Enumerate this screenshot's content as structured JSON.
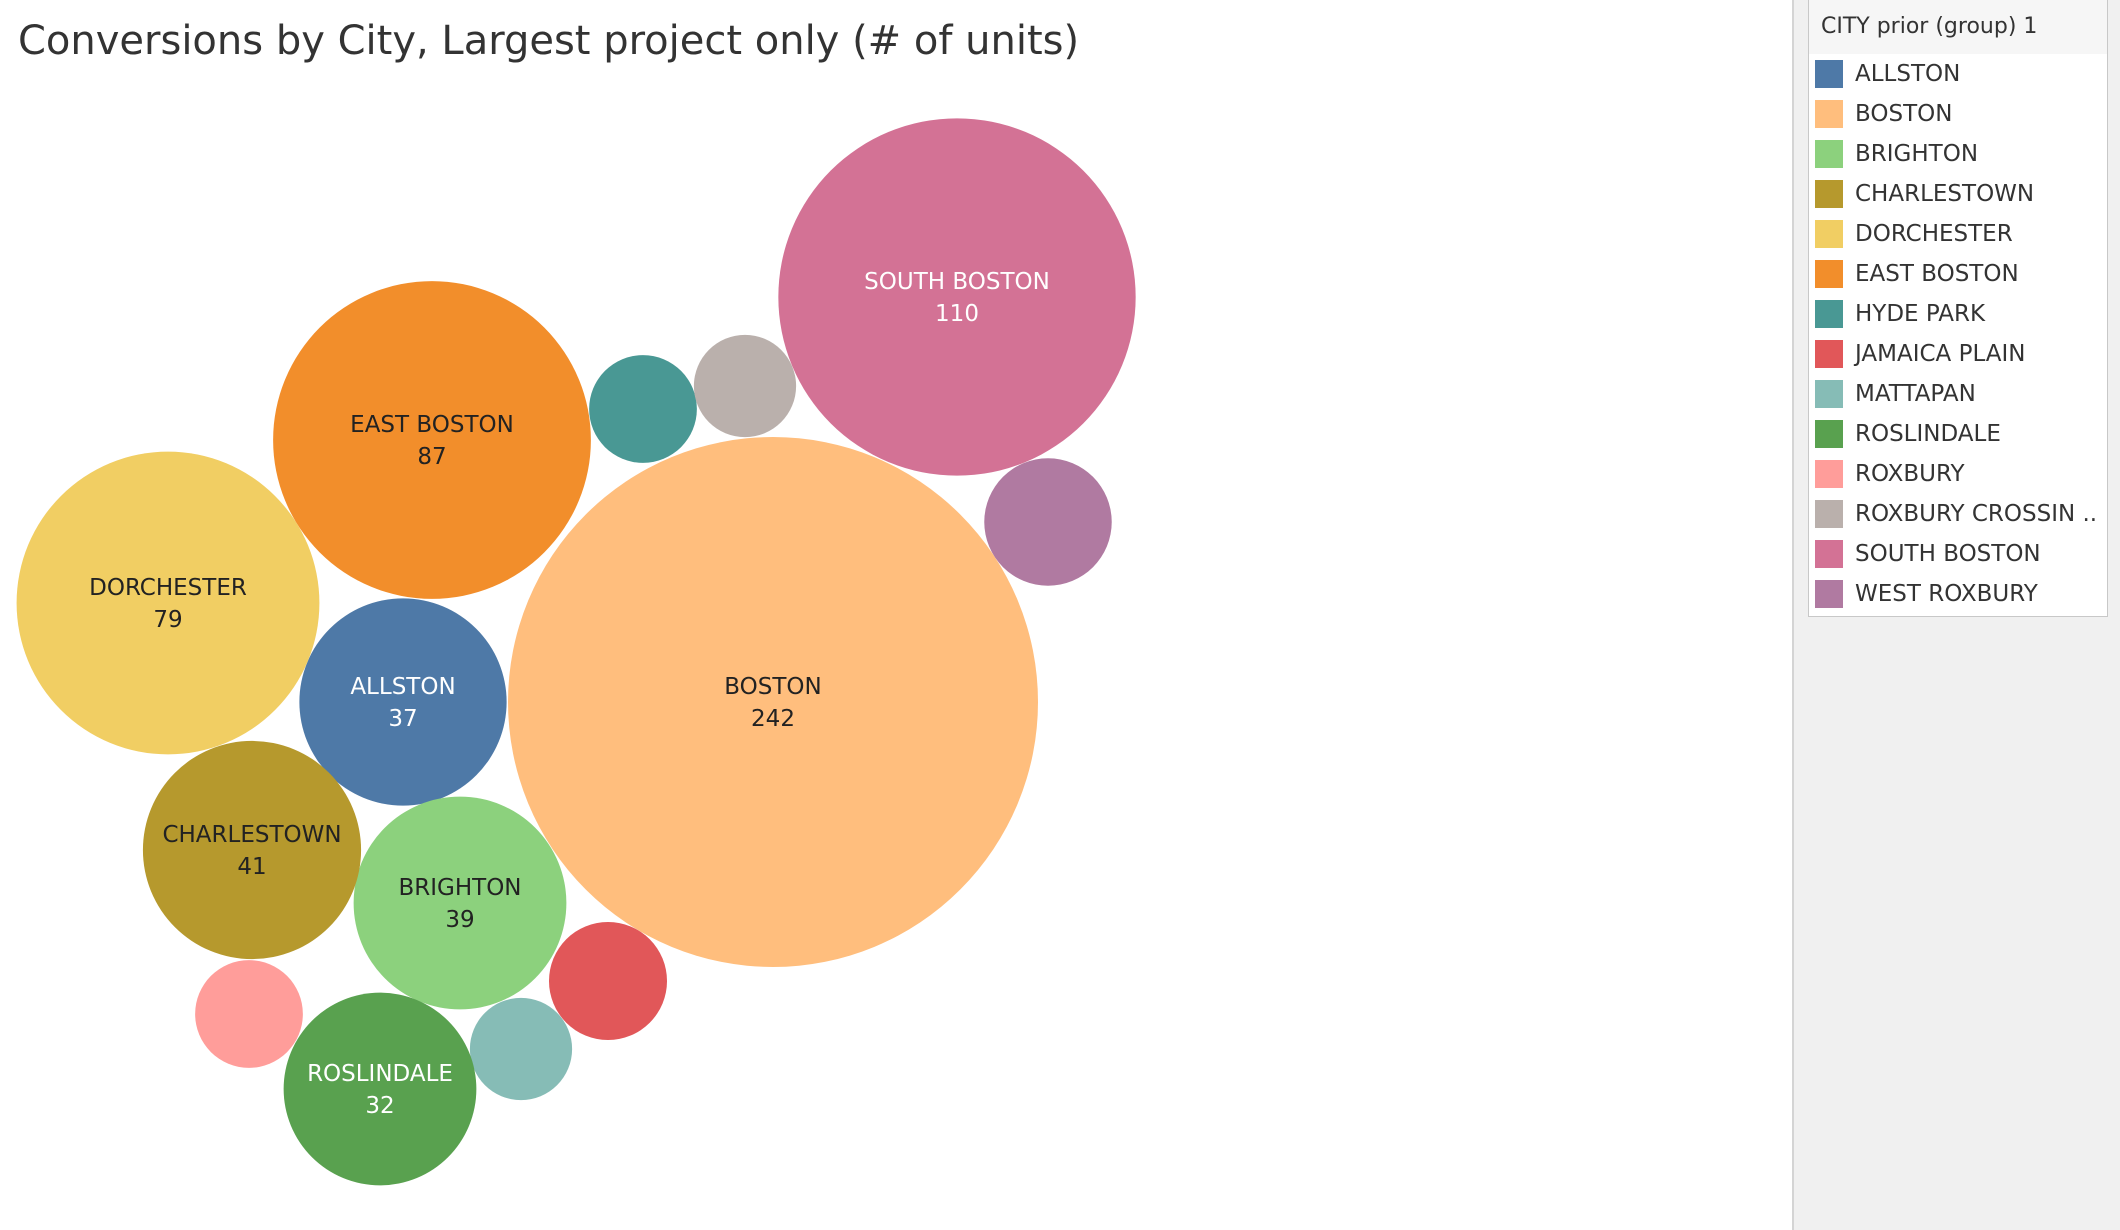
{
  "chart_data": {
    "type": "bubble",
    "title": "Conversions by City, Largest project only (# of units)",
    "legend_title": "CITY prior (group) 1",
    "legend_position": "right",
    "categories": [
      "ALLSTON",
      "BOSTON",
      "BRIGHTON",
      "CHARLESTOWN",
      "DORCHESTER",
      "EAST BOSTON",
      "HYDE PARK",
      "JAMAICA PLAIN",
      "MATTAPAN",
      "ROSLINDALE",
      "ROXBURY",
      "ROXBURY CROSSIN ..",
      "SOUTH BOSTON",
      "WEST ROXBURY"
    ],
    "bubbles": [
      {
        "name": "ALLSTON",
        "value": 37,
        "value_label": "37",
        "color": "#4E79A7",
        "text_color": "#ffffff",
        "labeled": true
      },
      {
        "name": "BOSTON",
        "value": 242,
        "value_label": "242",
        "color": "#FFBE7D",
        "text_color": "#222222",
        "labeled": true
      },
      {
        "name": "BRIGHTON",
        "value": 39,
        "value_label": "39",
        "color": "#8CD17D",
        "text_color": "#222222",
        "labeled": true
      },
      {
        "name": "CHARLESTOWN",
        "value": 41,
        "value_label": "41",
        "color": "#B6992D",
        "text_color": "#222222",
        "labeled": true
      },
      {
        "name": "DORCHESTER",
        "value": 79,
        "value_label": "79",
        "color": "#F1CE63",
        "text_color": "#222222",
        "labeled": true
      },
      {
        "name": "EAST BOSTON",
        "value": 87,
        "value_label": "87",
        "color": "#F28E2B",
        "text_color": "#222222",
        "labeled": true
      },
      {
        "name": "HYDE PARK",
        "value": 10,
        "color": "#499894",
        "text_color": "#ffffff",
        "labeled": false
      },
      {
        "name": "JAMAICA PLAIN",
        "value": 12,
        "color": "#E15759",
        "text_color": "#ffffff",
        "labeled": false
      },
      {
        "name": "MATTAPAN",
        "value": 9,
        "color": "#86BCB6",
        "text_color": "#ffffff",
        "labeled": false
      },
      {
        "name": "ROSLINDALE",
        "value": 32,
        "value_label": "32",
        "color": "#59A14F",
        "text_color": "#ffffff",
        "labeled": true
      },
      {
        "name": "ROXBURY",
        "value": 10,
        "color": "#FF9D9A",
        "text_color": "#ffffff",
        "labeled": false
      },
      {
        "name": "ROXBURY CROSSIN ..",
        "value": 9,
        "color": "#BAB0AC",
        "text_color": "#ffffff",
        "labeled": false
      },
      {
        "name": "SOUTH BOSTON",
        "value": 110,
        "value_label": "110",
        "color": "#D37295",
        "text_color": "#ffffff",
        "labeled": true
      },
      {
        "name": "WEST ROXBURY",
        "value": 14,
        "color": "#B07AA1",
        "text_color": "#ffffff",
        "labeled": false
      }
    ]
  }
}
